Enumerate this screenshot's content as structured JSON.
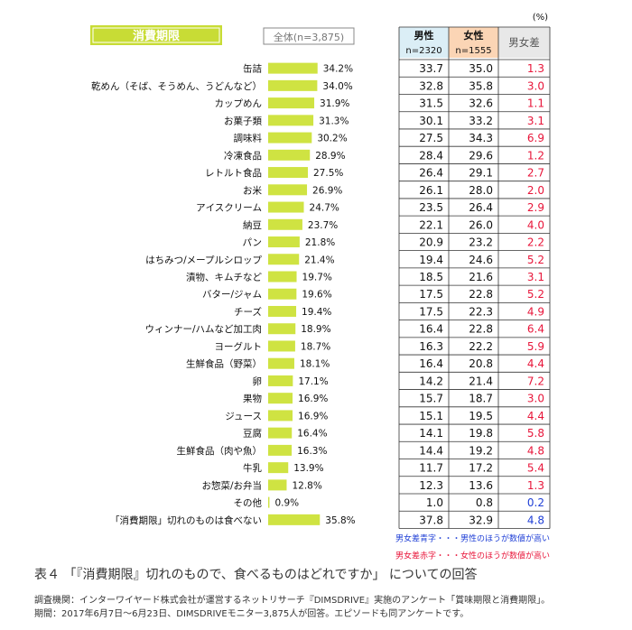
{
  "chart_data": {
    "type": "bar",
    "title": "消費期限",
    "series_label": "全体(n=3,875)",
    "categories": [
      "缶詰",
      "乾めん（そば、そうめん、うどんなど）",
      "カップめん",
      "お菓子類",
      "調味料",
      "冷凍食品",
      "レトルト食品",
      "お米",
      "アイスクリーム",
      "納豆",
      "パン",
      "はちみつ/メープルシロップ",
      "漬物、キムチなど",
      "バター/ジャム",
      "チーズ",
      "ウィンナー/ハムなど加工肉",
      "ヨーグルト",
      "生鮮食品（野菜）",
      "卵",
      "果物",
      "ジュース",
      "豆腐",
      "生鮮食品（肉や魚）",
      "牛乳",
      "お惣菜/お弁当",
      "その他",
      "「消費期限」切れのものは食べない"
    ],
    "values": [
      34.2,
      34.0,
      31.9,
      31.3,
      30.2,
      28.9,
      27.5,
      26.9,
      24.7,
      23.7,
      21.8,
      21.4,
      19.7,
      19.6,
      19.4,
      18.9,
      18.7,
      18.1,
      17.1,
      16.9,
      16.9,
      16.4,
      16.3,
      13.9,
      12.8,
      0.9,
      35.8
    ],
    "value_labels": [
      "34.2%",
      "34.0%",
      "31.9%",
      "31.3%",
      "30.2%",
      "28.9%",
      "27.5%",
      "26.9%",
      "24.7%",
      "23.7%",
      "21.8%",
      "21.4%",
      "19.7%",
      "19.6%",
      "19.4%",
      "18.9%",
      "18.7%",
      "18.1%",
      "17.1%",
      "16.9%",
      "16.9%",
      "16.4%",
      "16.3%",
      "13.9%",
      "12.8%",
      "0.9%",
      "35.8%"
    ],
    "table": {
      "unit": "(%)",
      "columns": [
        {
          "label": "男性",
          "sub": "n=2320",
          "color": "#dbeef6"
        },
        {
          "label": "女性",
          "sub": "n=1555",
          "color": "#fbd5b5"
        },
        {
          "label": "男女差",
          "sub": "",
          "color": "#e8e8e8"
        }
      ],
      "male": [
        "33.7",
        "32.8",
        "31.5",
        "30.1",
        "27.5",
        "28.4",
        "26.4",
        "26.1",
        "23.5",
        "22.1",
        "20.9",
        "19.4",
        "18.5",
        "17.5",
        "17.5",
        "16.4",
        "16.3",
        "16.4",
        "14.2",
        "15.7",
        "15.1",
        "14.1",
        "14.4",
        "11.7",
        "12.3",
        "1.0",
        "37.8"
      ],
      "female": [
        "35.0",
        "35.8",
        "32.6",
        "33.2",
        "34.3",
        "29.6",
        "29.1",
        "28.0",
        "26.4",
        "26.0",
        "23.2",
        "24.6",
        "21.6",
        "22.8",
        "22.3",
        "22.8",
        "22.2",
        "20.8",
        "21.4",
        "18.7",
        "19.5",
        "19.8",
        "19.2",
        "17.2",
        "13.6",
        "0.8",
        "32.9"
      ],
      "diff": [
        "1.3",
        "3.0",
        "1.1",
        "3.1",
        "6.9",
        "1.2",
        "2.7",
        "2.0",
        "2.9",
        "4.0",
        "2.2",
        "5.2",
        "3.1",
        "5.2",
        "4.9",
        "6.4",
        "5.9",
        "4.4",
        "7.2",
        "3.0",
        "4.4",
        "5.8",
        "4.8",
        "5.4",
        "1.3",
        "0.2",
        "4.8"
      ],
      "diff_sign": [
        "f",
        "f",
        "f",
        "f",
        "f",
        "f",
        "f",
        "f",
        "f",
        "f",
        "f",
        "f",
        "f",
        "f",
        "f",
        "f",
        "f",
        "f",
        "f",
        "f",
        "f",
        "f",
        "f",
        "f",
        "f",
        "m",
        "m"
      ]
    },
    "legend_notes": [
      {
        "text": "男女差青字・・・男性のほうが数値が高い",
        "color": "#1f3fd6"
      },
      {
        "text": "男女差赤字・・・女性のほうが数値が高い",
        "color": "#e8163a"
      }
    ],
    "colors": {
      "bar": "#cfe342",
      "title_bg": "#c8dc35",
      "diff_female": "#e8163a",
      "diff_male": "#1f3fd6"
    }
  },
  "caption": "表４ 「『消費期限』切れのもので、食べるものはどれですか」 についての回答",
  "source_lines": [
    "調査機関：インターワイヤード株式会社が運営するネットリサーチ『DIMSDRIVE』実施のアンケート「賞味期限と消費期限」。",
    "期間：2017年6月7日〜6月23日、DIMSDRIVEモニター3,875人が回答。エピソードも同アンケートです。"
  ]
}
